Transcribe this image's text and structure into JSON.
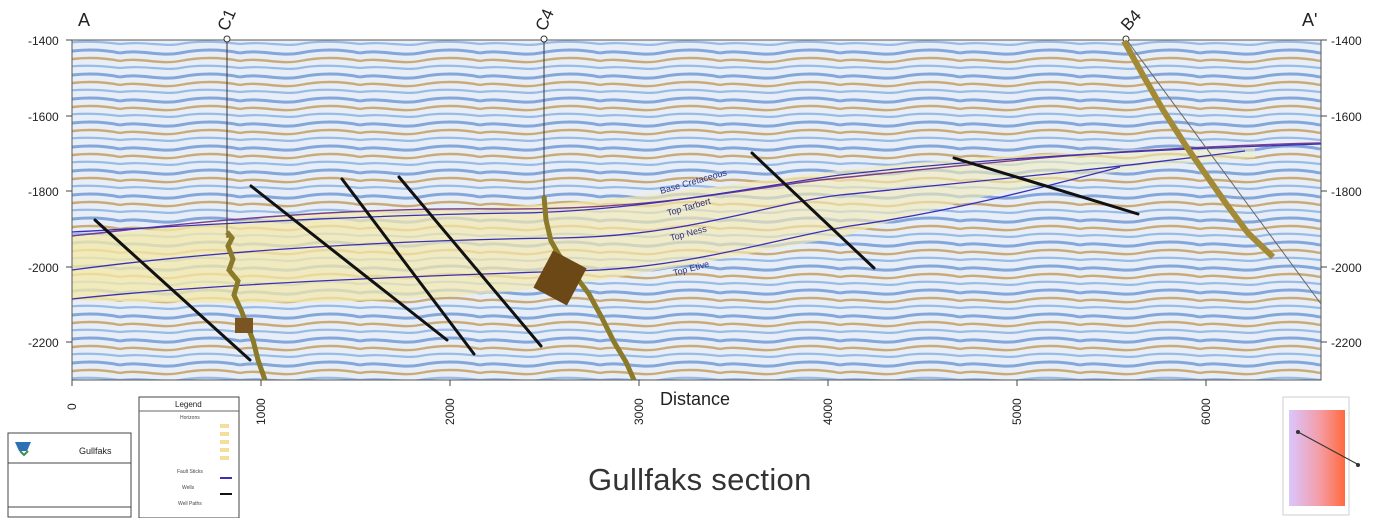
{
  "figure": {
    "title": "Gullfaks section",
    "x_axis_label": "Distance",
    "section_start_label": "A",
    "section_end_label": "A'",
    "depth_ticks_left": [
      "-1400",
      "-1600",
      "-1800",
      "-2000",
      "-2200"
    ],
    "depth_ticks_right": [
      "-1400",
      "-1600",
      "-1800",
      "-2000",
      "-2200"
    ],
    "distance_ticks": [
      "0",
      "1000",
      "2000",
      "3000",
      "4000",
      "5000",
      "6000"
    ]
  },
  "wells": [
    {
      "name": "C1"
    },
    {
      "name": "C4"
    },
    {
      "name": "B4"
    }
  ],
  "horizons": [
    {
      "name": "Base Cretaceous"
    },
    {
      "name": "Top Tarbert"
    },
    {
      "name": "Top Ness"
    },
    {
      "name": "Top Etive"
    }
  ],
  "legend": {
    "title": "Legend",
    "horizons_header": "Horizons",
    "faults_header": "Fault Sticks",
    "wells_header": "Wells",
    "well_path_header": "Well Paths"
  },
  "title_block": {
    "project": "Gullfaks"
  },
  "colors": {
    "seismic_blue": "#4a7dc4",
    "seismic_brown": "#c7a46a",
    "horizon_line": "#3a2fb8",
    "fault_line": "#111111",
    "reservoir_fill": "#f3e7a3",
    "well_log": "#8a7a2a"
  }
}
